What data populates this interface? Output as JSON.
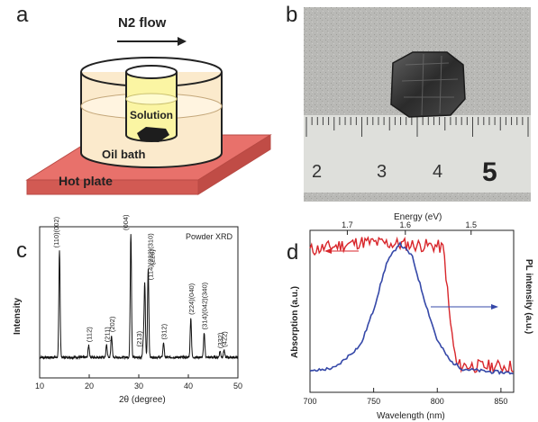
{
  "panels": {
    "a": {
      "letter": "a",
      "flow_label": "N2 flow",
      "solution_label": "Solution",
      "oil_bath_label": "Oil bath",
      "hot_plate_label": "Hot plate"
    },
    "b": {
      "letter": "b",
      "ruler_numbers": [
        "2",
        "3",
        "4",
        "5"
      ]
    },
    "c": {
      "letter": "c",
      "ylabel": "Intensity",
      "xlabel": "2θ (degree)",
      "legend": "Powder XRD"
    },
    "d": {
      "letter": "d",
      "ylabel_left": "Absorption (a.u.)",
      "ylabel_right": "PL intensity (a.u.)",
      "xlabel_bottom": "Wavelength (nm)",
      "xlabel_top": "Energy (eV)"
    }
  },
  "chart_data": [
    {
      "type": "line",
      "panel": "c",
      "title": "Powder XRD",
      "xlabel": "2θ (degree)",
      "ylabel": "Intensity",
      "xlim": [
        10,
        50
      ],
      "x_ticks": [
        "10",
        "20",
        "30",
        "40",
        "50"
      ],
      "peaks": [
        {
          "x": 14.0,
          "height": 0.86,
          "label": "(110)(002)"
        },
        {
          "x": 19.9,
          "height": 0.1,
          "label": "(112)"
        },
        {
          "x": 23.5,
          "height": 0.1,
          "label": "(211)"
        },
        {
          "x": 24.5,
          "height": 0.18,
          "label": "(202)"
        },
        {
          "x": 28.4,
          "height": 1.0,
          "label": "(004)"
        },
        {
          "x": 31.9,
          "height": 0.72,
          "label": "(220)"
        },
        {
          "x": 30.9,
          "height": 0.12,
          "label": "(213)"
        },
        {
          "x": 31.2,
          "height": 0.6,
          "label": "(114)(222)(310)"
        },
        {
          "x": 35.0,
          "height": 0.12,
          "label": "(312)"
        },
        {
          "x": 40.5,
          "height": 0.32,
          "label": "(224)(040)"
        },
        {
          "x": 43.2,
          "height": 0.2,
          "label": "(314)(042)(340)"
        },
        {
          "x": 46.4,
          "height": 0.05,
          "label": "(332)"
        },
        {
          "x": 47.2,
          "height": 0.06,
          "label": "(422)"
        }
      ]
    },
    {
      "type": "line",
      "panel": "d",
      "xlabel": "Wavelength (nm)",
      "x2label": "Energy (eV)",
      "ylabel": "Absorption (a.u.)",
      "y2label": "PL intensity (a.u.)",
      "xlim": [
        700,
        860
      ],
      "x_ticks": [
        "700",
        "750",
        "800",
        "850"
      ],
      "x2_ticks": [
        "1.7",
        "1.6",
        "1.5"
      ],
      "series": [
        {
          "color": "#d8262b",
          "axis": "left",
          "x": [
            700,
            720,
            740,
            760,
            780,
            800,
            805,
            810,
            815,
            830,
            845,
            860
          ],
          "y": [
            0.92,
            0.95,
            0.98,
            0.97,
            0.96,
            0.95,
            0.93,
            0.4,
            0.07,
            0.06,
            0.06,
            0.06
          ]
        },
        {
          "color": "#3548a8",
          "axis": "right",
          "x": [
            700,
            720,
            740,
            750,
            760,
            770,
            780,
            790,
            800,
            810,
            820,
            840,
            860
          ],
          "y": [
            0.02,
            0.05,
            0.22,
            0.48,
            0.82,
            0.97,
            0.88,
            0.55,
            0.25,
            0.1,
            0.04,
            0.02,
            0.01
          ]
        }
      ],
      "arrows": [
        "left-to-absorption",
        "right-to-pl"
      ]
    }
  ]
}
